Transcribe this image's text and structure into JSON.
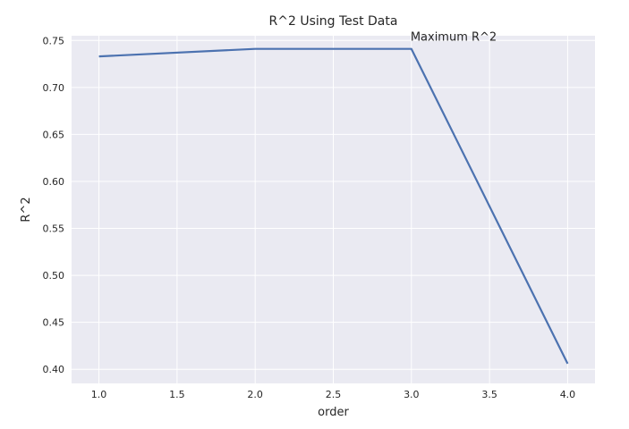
{
  "chart_data": {
    "type": "line",
    "title": "R^2 Using Test Data",
    "xlabel": "order",
    "ylabel": "R^2",
    "xlim": [
      0.825,
      4.175
    ],
    "ylim": [
      0.385,
      0.755
    ],
    "xticks": [
      1.0,
      1.5,
      2.0,
      2.5,
      3.0,
      3.5,
      4.0
    ],
    "xtick_labels": [
      "1.0",
      "1.5",
      "2.0",
      "2.5",
      "3.0",
      "3.5",
      "4.0"
    ],
    "yticks": [
      0.4,
      0.45,
      0.5,
      0.55,
      0.6,
      0.65,
      0.7,
      0.75
    ],
    "ytick_labels": [
      "0.40",
      "0.45",
      "0.50",
      "0.55",
      "0.60",
      "0.65",
      "0.70",
      "0.75"
    ],
    "grid": true,
    "background": "#eaeaf2",
    "grid_color": "#ffffff",
    "series": [
      {
        "color": "#4c72b0",
        "x": [
          1,
          2,
          3,
          4
        ],
        "y": [
          0.733,
          0.741,
          0.741,
          0.406
        ]
      }
    ],
    "annotations": [
      {
        "text": "Maximum R^2",
        "x": 3.0,
        "y": 0.741
      }
    ]
  }
}
